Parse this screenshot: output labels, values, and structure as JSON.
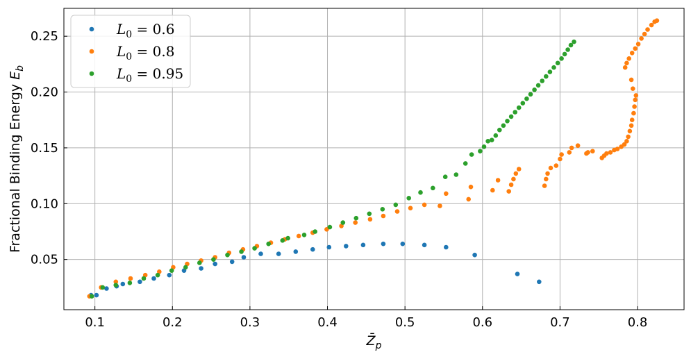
{
  "chart_data": {
    "type": "scatter",
    "xlabel": "Z̄_p",
    "ylabel": "Fractional Binding Energy E_b",
    "xlim": [
      0.06,
      0.86
    ],
    "ylim": [
      0.005,
      0.275
    ],
    "xticks": [
      0.1,
      0.2,
      0.3,
      0.4,
      0.5,
      0.6,
      0.7,
      0.8
    ],
    "yticks": [
      0.05,
      0.1,
      0.15,
      0.2,
      0.25
    ],
    "xtick_labels": [
      "0.1",
      "0.2",
      "0.3",
      "0.4",
      "0.5",
      "0.6",
      "0.7",
      "0.8"
    ],
    "ytick_labels": [
      "0.05",
      "0.10",
      "0.15",
      "0.20",
      "0.25"
    ],
    "grid": true,
    "legend_position": "top-left",
    "series": [
      {
        "name": "L_0 = 0.6",
        "legend_var": "L",
        "legend_sub": "0",
        "legend_val": " = 0.6",
        "color": "#1f77b4",
        "points": [
          [
            0.095,
            0.018
          ],
          [
            0.102,
            0.018
          ],
          [
            0.115,
            0.024
          ],
          [
            0.128,
            0.026
          ],
          [
            0.136,
            0.028
          ],
          [
            0.158,
            0.03
          ],
          [
            0.176,
            0.033
          ],
          [
            0.196,
            0.036
          ],
          [
            0.215,
            0.04
          ],
          [
            0.237,
            0.042
          ],
          [
            0.255,
            0.046
          ],
          [
            0.277,
            0.048
          ],
          [
            0.292,
            0.052
          ],
          [
            0.314,
            0.055
          ],
          [
            0.337,
            0.055
          ],
          [
            0.359,
            0.057
          ],
          [
            0.381,
            0.059
          ],
          [
            0.402,
            0.061
          ],
          [
            0.424,
            0.062
          ],
          [
            0.446,
            0.063
          ],
          [
            0.472,
            0.064
          ],
          [
            0.497,
            0.064
          ],
          [
            0.525,
            0.063
          ],
          [
            0.553,
            0.061
          ],
          [
            0.59,
            0.054
          ],
          [
            0.645,
            0.037
          ],
          [
            0.673,
            0.03
          ]
        ]
      },
      {
        "name": "L_0 = 0.8",
        "legend_var": "L",
        "legend_sub": "0",
        "legend_val": " = 0.8",
        "color": "#ff7f0e",
        "points": [
          [
            0.093,
            0.017
          ],
          [
            0.108,
            0.025
          ],
          [
            0.127,
            0.03
          ],
          [
            0.146,
            0.033
          ],
          [
            0.165,
            0.036
          ],
          [
            0.183,
            0.039
          ],
          [
            0.201,
            0.043
          ],
          [
            0.219,
            0.046
          ],
          [
            0.237,
            0.049
          ],
          [
            0.255,
            0.052
          ],
          [
            0.273,
            0.056
          ],
          [
            0.291,
            0.059
          ],
          [
            0.309,
            0.062
          ],
          [
            0.327,
            0.065
          ],
          [
            0.345,
            0.068
          ],
          [
            0.363,
            0.071
          ],
          [
            0.381,
            0.074
          ],
          [
            0.399,
            0.077
          ],
          [
            0.418,
            0.08
          ],
          [
            0.436,
            0.083
          ],
          [
            0.455,
            0.086
          ],
          [
            0.472,
            0.089
          ],
          [
            0.49,
            0.093
          ],
          [
            0.507,
            0.096
          ],
          [
            0.525,
            0.099
          ],
          [
            0.545,
            0.098
          ],
          [
            0.553,
            0.109
          ],
          [
            0.582,
            0.104
          ],
          [
            0.585,
            0.115
          ],
          [
            0.613,
            0.112
          ],
          [
            0.62,
            0.121
          ],
          [
            0.634,
            0.111
          ],
          [
            0.637,
            0.117
          ],
          [
            0.64,
            0.122
          ],
          [
            0.643,
            0.127
          ],
          [
            0.647,
            0.131
          ],
          [
            0.68,
            0.116
          ],
          [
            0.682,
            0.122
          ],
          [
            0.684,
            0.127
          ],
          [
            0.688,
            0.132
          ],
          [
            0.695,
            0.134
          ],
          [
            0.7,
            0.14
          ],
          [
            0.702,
            0.144
          ],
          [
            0.712,
            0.146
          ],
          [
            0.715,
            0.15
          ],
          [
            0.723,
            0.152
          ],
          [
            0.734,
            0.145
          ],
          [
            0.736,
            0.146
          ],
          [
            0.742,
            0.147
          ],
          [
            0.754,
            0.141
          ],
          [
            0.757,
            0.143
          ],
          [
            0.76,
            0.145
          ],
          [
            0.765,
            0.146
          ],
          [
            0.77,
            0.148
          ],
          [
            0.774,
            0.149
          ],
          [
            0.779,
            0.151
          ],
          [
            0.783,
            0.153
          ],
          [
            0.786,
            0.156
          ],
          [
            0.788,
            0.16
          ],
          [
            0.79,
            0.165
          ],
          [
            0.792,
            0.17
          ],
          [
            0.793,
            0.175
          ],
          [
            0.795,
            0.181
          ],
          [
            0.796,
            0.187
          ],
          [
            0.797,
            0.193
          ],
          [
            0.798,
            0.197
          ],
          [
            0.794,
            0.203
          ],
          [
            0.792,
            0.211
          ],
          [
            0.784,
            0.222
          ],
          [
            0.786,
            0.226
          ],
          [
            0.789,
            0.23
          ],
          [
            0.793,
            0.235
          ],
          [
            0.797,
            0.239
          ],
          [
            0.801,
            0.243
          ],
          [
            0.805,
            0.248
          ],
          [
            0.809,
            0.252
          ],
          [
            0.813,
            0.256
          ],
          [
            0.818,
            0.26
          ],
          [
            0.822,
            0.263
          ],
          [
            0.825,
            0.264
          ]
        ]
      },
      {
        "name": "L_0 = 0.95",
        "legend_var": "L",
        "legend_sub": "0",
        "legend_val": " = 0.95",
        "color": "#2ca02c",
        "points": [
          [
            0.096,
            0.017
          ],
          [
            0.11,
            0.025
          ],
          [
            0.127,
            0.027
          ],
          [
            0.145,
            0.029
          ],
          [
            0.163,
            0.033
          ],
          [
            0.181,
            0.036
          ],
          [
            0.199,
            0.04
          ],
          [
            0.217,
            0.043
          ],
          [
            0.235,
            0.047
          ],
          [
            0.253,
            0.05
          ],
          [
            0.271,
            0.054
          ],
          [
            0.289,
            0.057
          ],
          [
            0.306,
            0.06
          ],
          [
            0.324,
            0.064
          ],
          [
            0.342,
            0.067
          ],
          [
            0.349,
            0.069
          ],
          [
            0.37,
            0.072
          ],
          [
            0.384,
            0.075
          ],
          [
            0.403,
            0.079
          ],
          [
            0.42,
            0.083
          ],
          [
            0.437,
            0.087
          ],
          [
            0.454,
            0.091
          ],
          [
            0.471,
            0.095
          ],
          [
            0.488,
            0.099
          ],
          [
            0.505,
            0.105
          ],
          [
            0.52,
            0.11
          ],
          [
            0.536,
            0.114
          ],
          [
            0.552,
            0.124
          ],
          [
            0.566,
            0.126
          ],
          [
            0.578,
            0.136
          ],
          [
            0.586,
            0.144
          ],
          [
            0.597,
            0.147
          ],
          [
            0.602,
            0.151
          ],
          [
            0.607,
            0.156
          ],
          [
            0.612,
            0.157
          ],
          [
            0.617,
            0.161
          ],
          [
            0.622,
            0.166
          ],
          [
            0.627,
            0.17
          ],
          [
            0.632,
            0.174
          ],
          [
            0.637,
            0.178
          ],
          [
            0.642,
            0.182
          ],
          [
            0.647,
            0.186
          ],
          [
            0.652,
            0.19
          ],
          [
            0.657,
            0.194
          ],
          [
            0.662,
            0.198
          ],
          [
            0.667,
            0.202
          ],
          [
            0.672,
            0.206
          ],
          [
            0.677,
            0.21
          ],
          [
            0.682,
            0.214
          ],
          [
            0.687,
            0.218
          ],
          [
            0.692,
            0.222
          ],
          [
            0.697,
            0.226
          ],
          [
            0.702,
            0.23
          ],
          [
            0.706,
            0.234
          ],
          [
            0.71,
            0.238
          ],
          [
            0.714,
            0.242
          ],
          [
            0.718,
            0.245
          ]
        ]
      }
    ]
  }
}
